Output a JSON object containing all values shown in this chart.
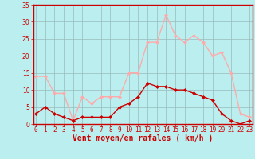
{
  "hours": [
    0,
    1,
    2,
    3,
    4,
    5,
    6,
    7,
    8,
    9,
    10,
    11,
    12,
    13,
    14,
    15,
    16,
    17,
    18,
    19,
    20,
    21,
    22,
    23
  ],
  "wind_avg": [
    3,
    5,
    3,
    2,
    1,
    2,
    2,
    2,
    2,
    5,
    6,
    8,
    12,
    11,
    11,
    10,
    10,
    9,
    8,
    7,
    3,
    1,
    0,
    1
  ],
  "wind_gust": [
    14,
    14,
    9,
    9,
    1,
    8,
    6,
    8,
    8,
    8,
    15,
    15,
    24,
    24,
    32,
    26,
    24,
    26,
    24,
    20,
    21,
    15,
    3,
    2
  ],
  "avg_color": "#cc0000",
  "gust_color": "#ffaaaa",
  "bg_color": "#bbeeee",
  "grid_color": "#99bbbb",
  "xlabel": "Vent moyen/en rafales ( km/h )",
  "xlabel_color": "#cc0000",
  "tick_color": "#cc0000",
  "ylim": [
    0,
    35
  ],
  "yticks": [
    0,
    5,
    10,
    15,
    20,
    25,
    30,
    35
  ],
  "marker": "D",
  "markersize": 2.0,
  "linewidth": 1.0,
  "tick_fontsize": 5.5,
  "xlabel_fontsize": 7.0
}
